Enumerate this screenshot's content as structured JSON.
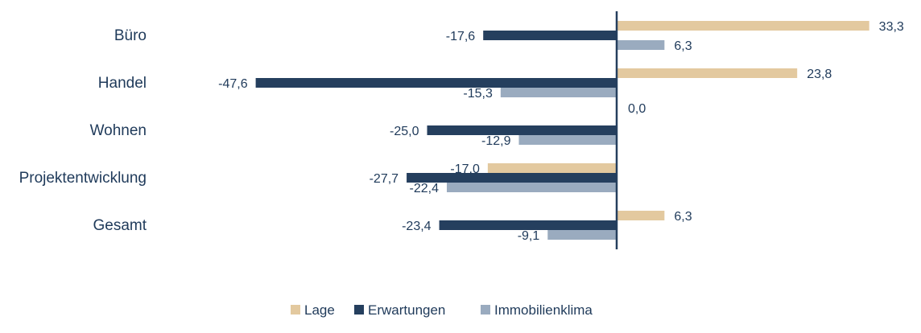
{
  "chart_data": {
    "type": "bar",
    "orientation": "horizontal",
    "categories": [
      "Büro",
      "Handel",
      "Wohnen",
      "Projektentwicklung",
      "Gesamt"
    ],
    "series": [
      {
        "name": "Lage",
        "values": [
          33.3,
          23.8,
          0.0,
          -17.0,
          6.3
        ],
        "labels": [
          "33,3",
          "23,8",
          "0,0",
          "-17,0",
          "6,3"
        ]
      },
      {
        "name": "Erwartungen",
        "values": [
          -17.6,
          -47.6,
          -25.0,
          -27.7,
          -23.4
        ],
        "labels": [
          "-17,6",
          "-47,6",
          "-25,0",
          "-27,7",
          "-23,4"
        ]
      },
      {
        "name": "Immobilienklima",
        "values": [
          6.3,
          -15.3,
          -12.9,
          -22.4,
          -9.1
        ],
        "labels": [
          "6,3",
          "-15,3",
          "-12,9",
          "-22,4",
          "-9,1"
        ]
      }
    ],
    "xlim": [
      -50,
      38
    ],
    "grid": false,
    "legend": "bottom",
    "title": "",
    "xlabel": "",
    "ylabel": ""
  },
  "colors": {
    "Lage": "#e3c99f",
    "Erwartungen": "#253f5e",
    "Immobilienklima": "#9aabbf",
    "axis": "#253f5e",
    "text": "#1f3a5a"
  }
}
